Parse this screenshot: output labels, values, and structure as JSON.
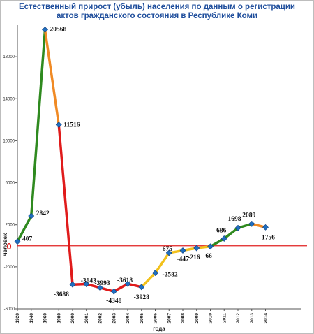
{
  "chart_data": {
    "type": "line",
    "title_lines": [
      "Естественный прирост (убыль) населения по данным  о регистрации",
      "актов гражданского состояния в Республике Коми"
    ],
    "xlabel": "года",
    "ylabel": "человек",
    "ylim": [
      -6000,
      21000
    ],
    "y_ticks": [
      -6000,
      -2000,
      2000,
      6000,
      10000,
      14000,
      18000
    ],
    "y_tick_labels": [
      "-6000",
      "-2000",
      "2000",
      "6000",
      "10000",
      "14000",
      "18000"
    ],
    "zero_label": "0",
    "categories": [
      "1920",
      "1940",
      "1960",
      "1980",
      "2000",
      "2001",
      "2002",
      "2003",
      "2004",
      "2005",
      "2006",
      "2007",
      "2008",
      "2009",
      "2010",
      "2011",
      "2012",
      "2013",
      "2014"
    ],
    "values": [
      407,
      2842,
      20568,
      11516,
      -3688,
      -3643,
      -3993,
      -4348,
      -3618,
      -3928,
      -2582,
      -675,
      -447,
      -216,
      -66,
      686,
      1698,
      2089,
      1756
    ],
    "data_labels": [
      "407",
      "2842",
      "20568",
      "11516",
      "-3688",
      "-3643",
      "-3993",
      "-4348",
      "-3618",
      "-3928",
      "-2582",
      "-675",
      "-447",
      "-216",
      "-66",
      "686",
      "1698",
      "2089",
      "1756"
    ],
    "segment_colors": [
      "#2f8a1f",
      "#2f8a1f",
      "#f08a24",
      "#e01b1b",
      "#e01b1b",
      "#e01b1b",
      "#e01b1b",
      "#e01b1b",
      "#e01b1b",
      "#f2c11c",
      "#f2c11c",
      "#f2c11c",
      "#f2c11c",
      "#f2c11c",
      "#2f8a1f",
      "#2f8a1f",
      "#2f8a1f",
      "#f08a24"
    ],
    "marker_color": "#1f6fc0",
    "zero_line_color": "#e02020",
    "grid": false
  }
}
